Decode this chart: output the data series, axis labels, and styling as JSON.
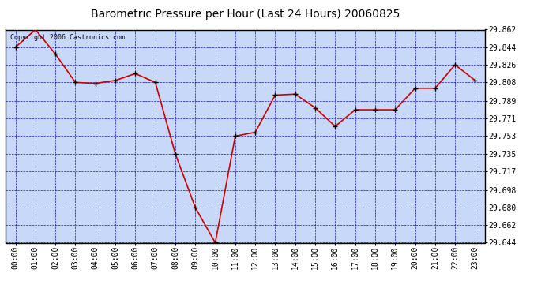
{
  "title": "Barometric Pressure per Hour (Last 24 Hours) 20060825",
  "copyright_text": "Copyright 2006 Castronics.com",
  "hours": [
    "00:00",
    "01:00",
    "02:00",
    "03:00",
    "04:00",
    "05:00",
    "06:00",
    "07:00",
    "08:00",
    "09:00",
    "10:00",
    "11:00",
    "12:00",
    "13:00",
    "14:00",
    "15:00",
    "16:00",
    "17:00",
    "18:00",
    "19:00",
    "20:00",
    "21:00",
    "22:00",
    "23:00"
  ],
  "values": [
    29.844,
    29.862,
    29.837,
    29.808,
    29.807,
    29.81,
    29.817,
    29.808,
    29.735,
    29.68,
    29.644,
    29.753,
    29.757,
    29.795,
    29.796,
    29.782,
    29.763,
    29.78,
    29.78,
    29.78,
    29.802,
    29.802,
    29.826,
    29.81
  ],
  "ylim_min": 29.644,
  "ylim_max": 29.862,
  "yticks": [
    29.644,
    29.662,
    29.68,
    29.698,
    29.717,
    29.735,
    29.753,
    29.771,
    29.789,
    29.808,
    29.826,
    29.844,
    29.862
  ],
  "line_color": "#cc0000",
  "marker_color": "#000000",
  "bg_color": "#ffffff",
  "plot_bg_color": "#c8d8f8",
  "grid_color": "#0000bb",
  "title_color": "#000000",
  "border_color": "#000000",
  "title_fontsize": 10,
  "tick_fontsize": 7,
  "copyright_fontsize": 6
}
